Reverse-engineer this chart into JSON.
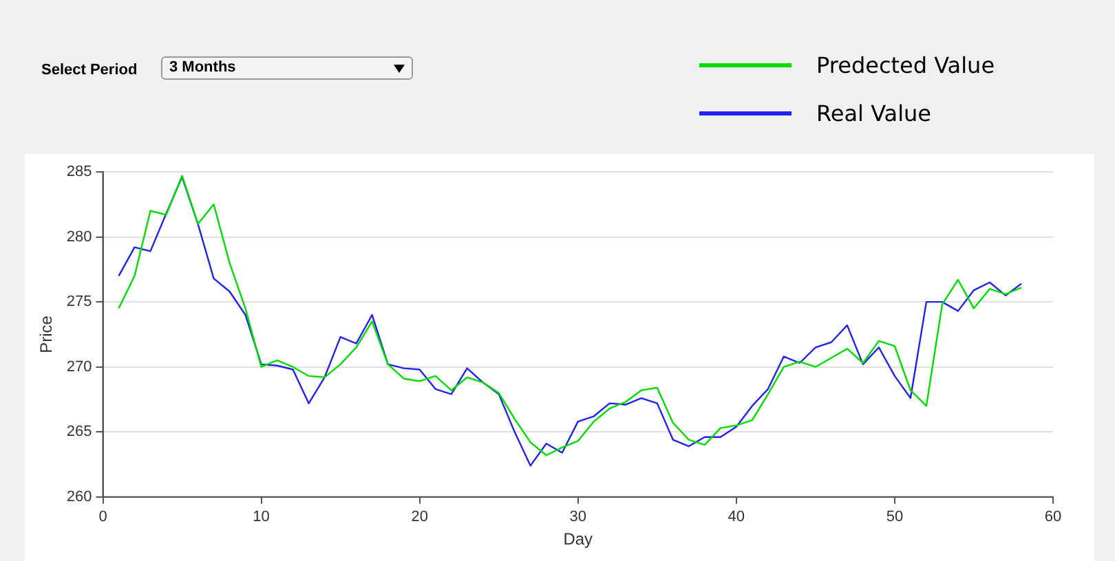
{
  "chart_data": {
    "type": "line",
    "xlabel": "Day",
    "ylabel": "Price",
    "x": [
      1,
      2,
      3,
      4,
      5,
      6,
      7,
      8,
      9,
      10,
      11,
      12,
      13,
      14,
      15,
      16,
      17,
      18,
      19,
      20,
      21,
      22,
      23,
      24,
      25,
      26,
      27,
      28,
      29,
      30,
      31,
      32,
      33,
      34,
      35,
      36,
      37,
      38,
      39,
      40,
      41,
      42,
      43,
      44,
      45,
      46,
      47,
      48,
      49,
      50,
      51,
      52,
      53,
      54,
      55,
      56,
      57,
      58
    ],
    "series": [
      {
        "name": "Predected Value",
        "color": "#00dd00",
        "values": [
          274.5,
          277,
          282,
          281.7,
          284.7,
          281,
          282.5,
          278,
          274.5,
          270,
          270.5,
          270,
          269.3,
          269.2,
          270.2,
          271.5,
          273.5,
          270.2,
          269.1,
          268.9,
          269.3,
          268.2,
          269.2,
          268.8,
          268,
          266,
          264.2,
          263.2,
          263.8,
          264.3,
          265.8,
          266.8,
          267.3,
          268.2,
          268.4,
          265.7,
          264.4,
          264,
          265.3,
          265.5,
          265.9,
          267.9,
          270,
          270.4,
          270,
          270.7,
          271.4,
          270.3,
          272,
          271.6,
          268.2,
          267,
          274.8,
          276.7,
          274.5,
          276,
          275.6,
          276.1
        ]
      },
      {
        "name": "Real Value",
        "color": "#2222ee",
        "values": [
          277,
          279.2,
          278.9,
          281.8,
          284.6,
          281,
          276.8,
          275.8,
          274,
          270.2,
          270.1,
          269.8,
          267.2,
          269.2,
          272.3,
          271.8,
          274,
          270.2,
          269.9,
          269.8,
          268.3,
          267.9,
          269.9,
          268.8,
          267.9,
          265,
          262.4,
          264.1,
          263.4,
          265.8,
          266.2,
          267.2,
          267.1,
          267.6,
          267.2,
          264.4,
          263.9,
          264.6,
          264.6,
          265.4,
          267,
          268.3,
          270.8,
          270.3,
          271.5,
          271.9,
          273.2,
          270.2,
          271.5,
          269.3,
          267.6,
          275,
          275,
          274.3,
          275.9,
          276.5,
          275.5,
          276.4
        ]
      }
    ],
    "xlim": [
      0,
      60
    ],
    "xticks": [
      0,
      10,
      20,
      30,
      40,
      50,
      60
    ],
    "ylim": [
      260,
      285
    ],
    "yticks": [
      260,
      265,
      270,
      275,
      280,
      285
    ],
    "grid": "y",
    "legend": "top right",
    "marker": "none",
    "line_style": "solid",
    "annotations": [
      "Select Period",
      "3 Months"
    ]
  }
}
